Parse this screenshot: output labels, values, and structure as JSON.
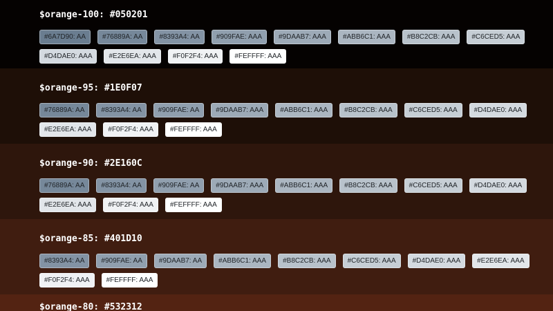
{
  "chip_text_color": "#212529",
  "heading_text_color": "#FFFFFF",
  "sections": [
    {
      "token": "$orange-100",
      "hex": "#050201",
      "heading": "$orange-100: #050201",
      "bg": "#050201",
      "rows": [
        [
          {
            "label": "#6A7D90: AA",
            "bg": "#6A7D90"
          },
          {
            "label": "#76889A: AA",
            "bg": "#76889A"
          },
          {
            "label": "#8393A4: AA",
            "bg": "#8393A4"
          },
          {
            "label": "#909FAE: AAA",
            "bg": "#909FAE"
          },
          {
            "label": "#9DAAB7: AAA",
            "bg": "#9DAAB7"
          },
          {
            "label": "#ABB6C1: AAA",
            "bg": "#ABB6C1"
          },
          {
            "label": "#B8C2CB: AAA",
            "bg": "#B8C2CB"
          },
          {
            "label": "#C6CED5: AAA",
            "bg": "#C6CED5"
          }
        ],
        [
          {
            "label": "#D4DAE0: AAA",
            "bg": "#D4DAE0"
          },
          {
            "label": "#E2E6EA: AAA",
            "bg": "#E2E6EA"
          },
          {
            "label": "#F0F2F4: AAA",
            "bg": "#F0F2F4"
          },
          {
            "label": "#FEFFFF: AAA",
            "bg": "#FEFFFF"
          }
        ]
      ]
    },
    {
      "token": "$orange-95",
      "hex": "#1E0F07",
      "heading": "$orange-95: #1E0F07",
      "bg": "#1E0F07",
      "rows": [
        [
          {
            "label": "#76889A: AA",
            "bg": "#76889A"
          },
          {
            "label": "#8393A4: AA",
            "bg": "#8393A4"
          },
          {
            "label": "#909FAE: AA",
            "bg": "#909FAE"
          },
          {
            "label": "#9DAAB7: AAA",
            "bg": "#9DAAB7"
          },
          {
            "label": "#ABB6C1: AAA",
            "bg": "#ABB6C1"
          },
          {
            "label": "#B8C2CB: AAA",
            "bg": "#B8C2CB"
          },
          {
            "label": "#C6CED5: AAA",
            "bg": "#C6CED5"
          },
          {
            "label": "#D4DAE0: AAA",
            "bg": "#D4DAE0"
          }
        ],
        [
          {
            "label": "#E2E6EA: AAA",
            "bg": "#E2E6EA"
          },
          {
            "label": "#F0F2F4: AAA",
            "bg": "#F0F2F4"
          },
          {
            "label": "#FEFFFF: AAA",
            "bg": "#FEFFFF"
          }
        ]
      ]
    },
    {
      "token": "$orange-90",
      "hex": "#2E160C",
      "heading": "$orange-90: #2E160C",
      "bg": "#2E160C",
      "rows": [
        [
          {
            "label": "#76889A: AA",
            "bg": "#76889A"
          },
          {
            "label": "#8393A4: AA",
            "bg": "#8393A4"
          },
          {
            "label": "#909FAE: AA",
            "bg": "#909FAE"
          },
          {
            "label": "#9DAAB7: AAA",
            "bg": "#9DAAB7"
          },
          {
            "label": "#ABB6C1: AAA",
            "bg": "#ABB6C1"
          },
          {
            "label": "#B8C2CB: AAA",
            "bg": "#B8C2CB"
          },
          {
            "label": "#C6CED5: AAA",
            "bg": "#C6CED5"
          },
          {
            "label": "#D4DAE0: AAA",
            "bg": "#D4DAE0"
          }
        ],
        [
          {
            "label": "#E2E6EA: AAA",
            "bg": "#E2E6EA"
          },
          {
            "label": "#F0F2F4: AAA",
            "bg": "#F0F2F4"
          },
          {
            "label": "#FEFFFF: AAA",
            "bg": "#FEFFFF"
          }
        ]
      ]
    },
    {
      "token": "$orange-85",
      "hex": "#401D10",
      "heading": "$orange-85: #401D10",
      "bg": "#401D10",
      "rows": [
        [
          {
            "label": "#8393A4: AA",
            "bg": "#8393A4"
          },
          {
            "label": "#909FAE: AA",
            "bg": "#909FAE"
          },
          {
            "label": "#9DAAB7: AA",
            "bg": "#9DAAB7"
          },
          {
            "label": "#ABB6C1: AAA",
            "bg": "#ABB6C1"
          },
          {
            "label": "#B8C2CB: AAA",
            "bg": "#B8C2CB"
          },
          {
            "label": "#C6CED5: AAA",
            "bg": "#C6CED5"
          },
          {
            "label": "#D4DAE0: AAA",
            "bg": "#D4DAE0"
          },
          {
            "label": "#E2E6EA: AAA",
            "bg": "#E2E6EA"
          }
        ],
        [
          {
            "label": "#F0F2F4: AAA",
            "bg": "#F0F2F4"
          },
          {
            "label": "#FEFFFF: AAA",
            "bg": "#FEFFFF"
          }
        ]
      ]
    },
    {
      "token": "$orange-80",
      "hex": "#532312",
      "heading": "$orange-80: #532312",
      "bg": "#532312",
      "rows": []
    }
  ]
}
